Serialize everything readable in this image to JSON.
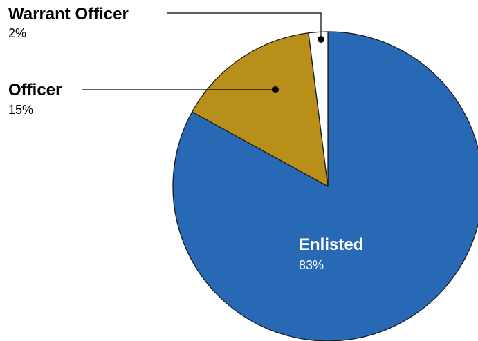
{
  "chart_data": {
    "type": "pie",
    "title": "",
    "slices": [
      {
        "label": "Enlisted",
        "value": 83,
        "value_label": "83%",
        "color": "#2769b5",
        "text_color": "#ffffff"
      },
      {
        "label": "Officer",
        "value": 15,
        "value_label": "15%",
        "color": "#b88f19",
        "text_color": "#000000"
      },
      {
        "label": "Warrant Officer",
        "value": 2,
        "value_label": "2%",
        "color": "#ffffff",
        "text_color": "#000000"
      }
    ],
    "start_angle_deg": 0,
    "direction": "clockwise",
    "legend": "none"
  }
}
